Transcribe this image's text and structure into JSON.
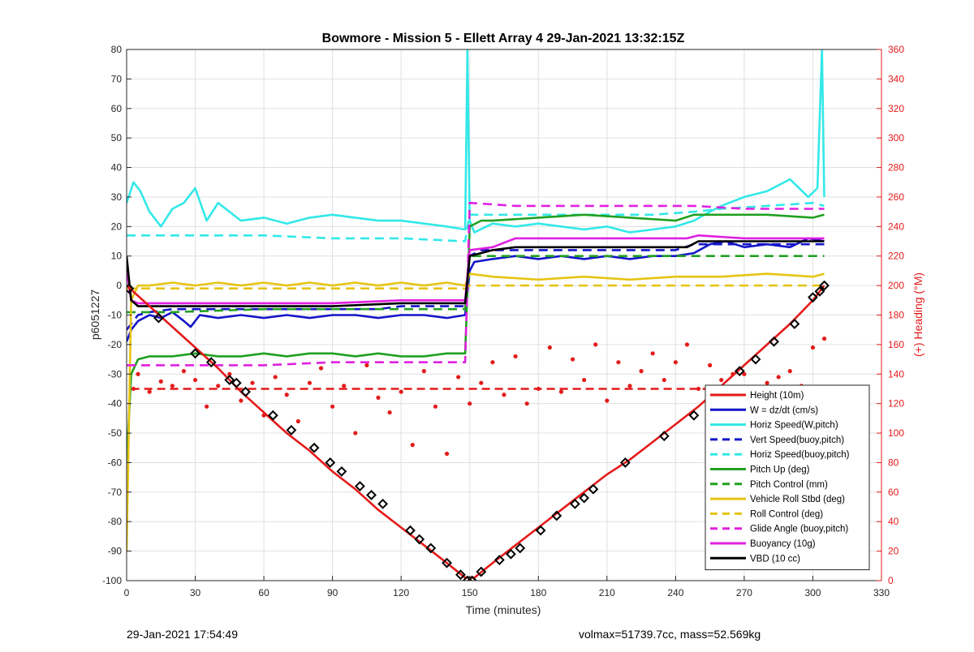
{
  "footer": {
    "timestamp": "29-Jan-2021 17:54:49",
    "info": "volmax=51739.7cc, mass=52.569kg"
  },
  "chart_data": {
    "type": "line",
    "title": "Bowmore - Mission 5 - Ellett Array 4 29-Jan-2021 13:32:15Z",
    "xlabel": "Time (minutes)",
    "ylabel": "p6051227",
    "y2label": "(+) Heading (°M)",
    "xlim": [
      0,
      330
    ],
    "ylim": [
      -100,
      80
    ],
    "y2lim": [
      0,
      360
    ],
    "xticks": [
      0,
      30,
      60,
      90,
      120,
      150,
      180,
      210,
      240,
      270,
      300,
      330
    ],
    "yticks": [
      -100,
      -90,
      -80,
      -70,
      -60,
      -50,
      -40,
      -30,
      -20,
      -10,
      0,
      10,
      20,
      30,
      40,
      50,
      60,
      70,
      80
    ],
    "y2ticks": [
      0,
      20,
      40,
      60,
      80,
      100,
      120,
      140,
      160,
      180,
      200,
      220,
      240,
      260,
      280,
      300,
      320,
      340,
      360
    ],
    "grid": true,
    "legend_position": "bottom-right",
    "colors": {
      "red": "#e41a1a",
      "blue": "#1414c8",
      "cyan": "#33e8e8",
      "green": "#20a020",
      "yellow": "#e6c414",
      "magenta": "#e020e0",
      "black": "#000000",
      "grid": "#e0e0e0",
      "right_axis": "#e41a1a"
    },
    "series": [
      {
        "name": "Height (10m)",
        "color": "#e41a1a",
        "style": "solid",
        "x": [
          0,
          10,
          20,
          30,
          40,
          50,
          60,
          70,
          80,
          90,
          100,
          110,
          120,
          130,
          140,
          148,
          152,
          160,
          170,
          180,
          190,
          200,
          210,
          220,
          230,
          240,
          250,
          260,
          270,
          280,
          290,
          300,
          305
        ],
        "y": [
          0,
          -7,
          -14,
          -21,
          -28,
          -36,
          -43,
          -50,
          -56,
          -63,
          -69,
          -76,
          -82,
          -88,
          -94,
          -99,
          -99,
          -94,
          -88,
          -82,
          -76,
          -70,
          -64,
          -59,
          -53,
          -47,
          -41,
          -34,
          -27,
          -20,
          -13,
          -5,
          0
        ]
      },
      {
        "name": "W = dz/dt (cm/s)",
        "color": "#1414c8",
        "style": "solid",
        "x": [
          0,
          2,
          5,
          10,
          15,
          20,
          25,
          28,
          32,
          40,
          50,
          60,
          70,
          80,
          90,
          100,
          110,
          120,
          130,
          140,
          148,
          150,
          152,
          160,
          170,
          180,
          190,
          200,
          210,
          220,
          230,
          240,
          248,
          255,
          262,
          270,
          280,
          290,
          298,
          305
        ],
        "y": [
          -19,
          -15,
          -12,
          -10,
          -11,
          -9,
          -12,
          -14,
          -10,
          -11,
          -10,
          -11,
          -10,
          -11,
          -10,
          -10,
          -11,
          -10,
          -10,
          -11,
          -10,
          5,
          8,
          9,
          10,
          9,
          10,
          9,
          10,
          9,
          10,
          10,
          11,
          14,
          15,
          13,
          14,
          13,
          16,
          15
        ]
      },
      {
        "name": "Horiz Speed(W,pitch)",
        "color": "#33e8e8",
        "style": "solid",
        "x": [
          0,
          3,
          6,
          10,
          15,
          20,
          25,
          30,
          35,
          40,
          50,
          60,
          70,
          80,
          90,
          100,
          110,
          120,
          130,
          140,
          148,
          149,
          150,
          152,
          160,
          170,
          180,
          190,
          200,
          210,
          220,
          230,
          240,
          248,
          255,
          260,
          270,
          280,
          290,
          298,
          302,
          304,
          305
        ],
        "y": [
          28,
          35,
          32,
          25,
          20,
          26,
          28,
          33,
          22,
          28,
          22,
          23,
          21,
          23,
          24,
          23,
          22,
          22,
          21,
          20,
          19,
          80,
          22,
          18,
          21,
          20,
          21,
          20,
          19,
          20,
          18,
          19,
          20,
          22,
          25,
          27,
          30,
          32,
          36,
          30,
          33,
          80,
          30
        ]
      },
      {
        "name": "Vert Speed(buoy,pitch)",
        "color": "#1414c8",
        "style": "dashed",
        "x": [
          0,
          5,
          10,
          20,
          30,
          40,
          50,
          60,
          70,
          80,
          90,
          100,
          110,
          120,
          130,
          140,
          148,
          150,
          155,
          165,
          180,
          200,
          220,
          240,
          248,
          260,
          280,
          300,
          305
        ],
        "y": [
          -15,
          -10,
          -9,
          -8,
          -8,
          -8,
          -8,
          -8,
          -8,
          -8,
          -8,
          -8,
          -8,
          -7,
          -7,
          -7,
          -7,
          10,
          12,
          12,
          12,
          12,
          12,
          12,
          14,
          14,
          14,
          14,
          14
        ]
      },
      {
        "name": "Horiz Speed(buoy,pitch)",
        "color": "#33e8e8",
        "style": "dashed",
        "x": [
          0,
          10,
          30,
          60,
          90,
          120,
          148,
          150,
          170,
          200,
          230,
          248,
          260,
          280,
          300,
          305
        ],
        "y": [
          17,
          17,
          17,
          17,
          16,
          16,
          15,
          24,
          24,
          24,
          24,
          25,
          26,
          27,
          28,
          27
        ]
      },
      {
        "name": "Pitch Up (deg)",
        "color": "#20a020",
        "style": "solid",
        "x": [
          0,
          2,
          5,
          10,
          20,
          30,
          40,
          50,
          60,
          70,
          80,
          90,
          100,
          110,
          120,
          130,
          140,
          148,
          150,
          155,
          160,
          180,
          200,
          220,
          240,
          248,
          260,
          280,
          300,
          305
        ],
        "y": [
          -60,
          -30,
          -25,
          -24,
          -24,
          -23,
          -24,
          -24,
          -23,
          -24,
          -23,
          -23,
          -24,
          -23,
          -24,
          -24,
          -23,
          -23,
          20,
          22,
          22,
          23,
          24,
          23,
          22,
          24,
          24,
          24,
          23,
          24
        ]
      },
      {
        "name": "Pitch Control (mm)",
        "color": "#20a020",
        "style": "dashed",
        "x": [
          0,
          5,
          20,
          60,
          100,
          140,
          148,
          150,
          170,
          200,
          230,
          248,
          270,
          300,
          305
        ],
        "y": [
          -9,
          -9,
          -9,
          -8,
          -8,
          -8,
          -8,
          10,
          10,
          10,
          10,
          10,
          10,
          10,
          10
        ]
      },
      {
        "name": "Vehicle Roll Stbd (deg)",
        "color": "#e6c414",
        "style": "solid",
        "x": [
          0,
          2,
          5,
          10,
          20,
          30,
          40,
          50,
          60,
          70,
          80,
          90,
          100,
          110,
          120,
          130,
          140,
          148,
          150,
          160,
          180,
          200,
          220,
          240,
          260,
          280,
          300,
          305
        ],
        "y": [
          -90,
          -5,
          0,
          0,
          1,
          0,
          1,
          0,
          1,
          0,
          1,
          0,
          1,
          0,
          1,
          0,
          1,
          0,
          4,
          3,
          2,
          3,
          2,
          3,
          3,
          4,
          3,
          4
        ]
      },
      {
        "name": "Roll Control (deg)",
        "color": "#e6c414",
        "style": "dashed",
        "x": [
          0,
          10,
          30,
          60,
          90,
          120,
          148,
          150,
          180,
          210,
          240,
          270,
          300,
          305
        ],
        "y": [
          -1,
          -1,
          -1,
          -1,
          -1,
          -1,
          -1,
          0,
          0,
          0,
          0,
          0,
          0,
          0
        ]
      },
      {
        "name": "Glide Angle (buoy,pitch)",
        "color": "#e020e0",
        "style": "dashed",
        "x": [
          0,
          5,
          30,
          60,
          90,
          120,
          148,
          150,
          170,
          200,
          230,
          248,
          270,
          300,
          305
        ],
        "y": [
          -27,
          -27,
          -27,
          -27,
          -26,
          -26,
          -26,
          28,
          27,
          27,
          27,
          27,
          26,
          26,
          26
        ]
      },
      {
        "name": "Buoyancy (10g)",
        "color": "#e020e0",
        "style": "solid",
        "x": [
          0,
          2,
          5,
          30,
          60,
          90,
          120,
          148,
          150,
          160,
          170,
          200,
          230,
          245,
          250,
          270,
          300,
          305
        ],
        "y": [
          5,
          -5,
          -6,
          -6,
          -6,
          -6,
          -5,
          -5,
          12,
          13,
          16,
          16,
          16,
          16,
          17,
          16,
          16,
          16
        ]
      },
      {
        "name": "VBD (10 cc)",
        "color": "#000000",
        "style": "solid",
        "x": [
          0,
          2,
          5,
          30,
          60,
          90,
          120,
          148,
          150,
          160,
          170,
          200,
          230,
          245,
          250,
          270,
          300,
          305
        ],
        "y": [
          10,
          -5,
          -7,
          -7,
          -7,
          -7,
          -6,
          -6,
          10,
          12,
          13,
          13,
          13,
          13,
          15,
          15,
          15,
          15
        ]
      }
    ],
    "extra_series": [
      {
        "role": "heading target",
        "axis": "right",
        "color": "#e41a1a",
        "style": "dashed",
        "x": [
          2,
          305
        ],
        "y": [
          130,
          130
        ]
      },
      {
        "role": "heading measured",
        "axis": "right",
        "color": "#e41a1a",
        "style": "markers",
        "x": [
          3,
          5,
          10,
          15,
          20,
          25,
          30,
          35,
          40,
          45,
          50,
          55,
          60,
          65,
          70,
          75,
          80,
          85,
          90,
          95,
          100,
          105,
          110,
          115,
          120,
          125,
          130,
          135,
          140,
          145,
          150,
          155,
          160,
          165,
          170,
          175,
          180,
          185,
          190,
          195,
          200,
          205,
          210,
          215,
          220,
          225,
          230,
          235,
          240,
          245,
          250,
          255,
          260,
          265,
          270,
          275,
          280,
          285,
          290,
          295,
          300,
          305
        ],
        "y": [
          130,
          140,
          128,
          135,
          132,
          142,
          136,
          118,
          132,
          140,
          122,
          134,
          112,
          138,
          126,
          108,
          134,
          144,
          118,
          132,
          100,
          146,
          124,
          114,
          128,
          92,
          142,
          118,
          86,
          138,
          120,
          134,
          148,
          126,
          152,
          120,
          130,
          158,
          128,
          150,
          136,
          160,
          122,
          148,
          132,
          142,
          154,
          136,
          148,
          160,
          130,
          146,
          136,
          140,
          140,
          126,
          134,
          138,
          142,
          132,
          158,
          164
        ]
      },
      {
        "role": "dive waypoints",
        "axis": "left",
        "color": "#000000",
        "style": "markers",
        "x": [
          1,
          14,
          30,
          37,
          45,
          48,
          52,
          64,
          72,
          82,
          89,
          94,
          102,
          107,
          112,
          124,
          128,
          133,
          140,
          146,
          149,
          151,
          155,
          163,
          168,
          172,
          181,
          188,
          196,
          200,
          204,
          218,
          235,
          248,
          256,
          260,
          268,
          275,
          283,
          292,
          300,
          303,
          305
        ],
        "y": [
          -1,
          -11,
          -23,
          -26,
          -32,
          -33,
          -36,
          -44,
          -49,
          -55,
          -60,
          -63,
          -68,
          -71,
          -74,
          -83,
          -86,
          -89,
          -94,
          -98,
          -100,
          -100,
          -97,
          -93,
          -91,
          -89,
          -83,
          -78,
          -74,
          -72,
          -69,
          -60,
          -51,
          -44,
          -39,
          -36,
          -29,
          -25,
          -19,
          -13,
          -4,
          -2,
          0
        ]
      }
    ]
  }
}
